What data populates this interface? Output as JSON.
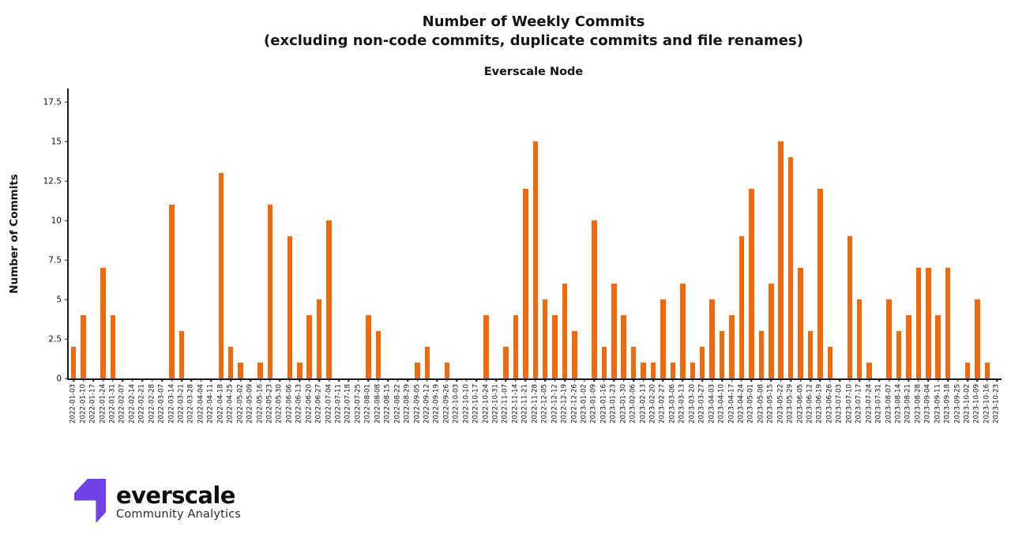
{
  "header": {
    "title_line1": "Number of Weekly Commits",
    "title_line2": "(excluding non-code commits, duplicate commits and file renames)",
    "subtitle": "Everscale Node"
  },
  "chart_data": {
    "type": "bar",
    "title": "Number of Weekly Commits (excluding non-code commits, duplicate commits and file renames)",
    "subtitle": "Everscale Node",
    "xlabel": "",
    "ylabel": "Number of Commits",
    "yticks": [
      0,
      2.5,
      5,
      7.5,
      10,
      12.5,
      15,
      17.5
    ],
    "ylim": [
      0,
      18.35
    ],
    "grid": false,
    "legend": "none",
    "bar_color": "#F2690D",
    "axis_color": "#1a1a1a",
    "categories": [
      "2022-01-03",
      "2022-01-10",
      "2022-01-17",
      "2022-01-24",
      "2022-01-31",
      "2022-02-07",
      "2022-02-14",
      "2022-02-21",
      "2022-02-28",
      "2022-03-07",
      "2022-03-14",
      "2022-03-21",
      "2022-03-28",
      "2022-04-04",
      "2022-04-11",
      "2022-04-18",
      "2022-04-25",
      "2022-05-02",
      "2022-05-09",
      "2022-05-16",
      "2022-05-23",
      "2022-05-30",
      "2022-06-06",
      "2022-06-13",
      "2022-06-20",
      "2022-06-27",
      "2022-07-04",
      "2022-07-11",
      "2022-07-18",
      "2022-07-25",
      "2022-08-01",
      "2022-08-08",
      "2022-08-15",
      "2022-08-22",
      "2022-08-29",
      "2022-09-05",
      "2022-09-12",
      "2022-09-19",
      "2022-09-26",
      "2022-10-03",
      "2022-10-10",
      "2022-10-17",
      "2022-10-24",
      "2022-10-31",
      "2022-11-07",
      "2022-11-14",
      "2022-11-21",
      "2022-11-28",
      "2022-12-05",
      "2022-12-12",
      "2022-12-19",
      "2022-12-26",
      "2023-01-02",
      "2023-01-09",
      "2023-01-16",
      "2023-01-23",
      "2023-01-30",
      "2023-02-06",
      "2023-02-13",
      "2023-02-20",
      "2023-02-27",
      "2023-03-06",
      "2023-03-13",
      "2023-03-20",
      "2023-03-27",
      "2023-04-03",
      "2023-04-10",
      "2023-04-17",
      "2023-04-24",
      "2023-05-01",
      "2023-05-08",
      "2023-05-15",
      "2023-05-22",
      "2023-05-29",
      "2023-06-05",
      "2023-06-12",
      "2023-06-19",
      "2023-06-26",
      "2023-07-03",
      "2023-07-10",
      "2023-07-17",
      "2023-07-24",
      "2023-07-31",
      "2023-08-07",
      "2023-08-14",
      "2023-08-21",
      "2023-08-28",
      "2023-09-04",
      "2023-09-11",
      "2023-09-18",
      "2023-09-25",
      "2023-10-02",
      "2023-10-09",
      "2023-10-16",
      "2023-10-23"
    ],
    "values": [
      2,
      4,
      0,
      7,
      4,
      0,
      0,
      0,
      0,
      0,
      11,
      3,
      0,
      0,
      0,
      13,
      2,
      1,
      0,
      1,
      11,
      0,
      9,
      1,
      4,
      5,
      10,
      0,
      0,
      0,
      4,
      3,
      0,
      0,
      0,
      1,
      2,
      0,
      1,
      0,
      0,
      0,
      4,
      0,
      2,
      4,
      12,
      15,
      5,
      4,
      6,
      3,
      0,
      10,
      2,
      6,
      4,
      2,
      1,
      1,
      5,
      1,
      6,
      1,
      2,
      5,
      3,
      4,
      9,
      12,
      3,
      6,
      15,
      14,
      7,
      3,
      12,
      2,
      0,
      9,
      5,
      1,
      0,
      5,
      3,
      4,
      7,
      7,
      4,
      7,
      0,
      1,
      5,
      1,
      0
    ]
  },
  "branding": {
    "wordmark": "everscale",
    "tagline": "Community Analytics",
    "logo_color": "#7142E6"
  }
}
